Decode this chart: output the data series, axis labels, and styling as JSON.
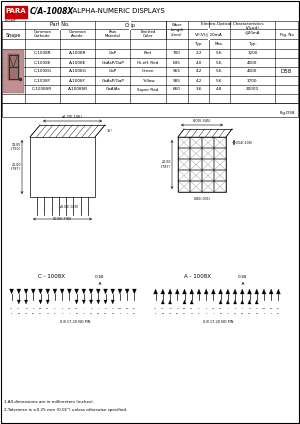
{
  "title_bold": "C/A-1008X",
  "title_rest": "  ALPHA-NUMERIC DISPLAYS",
  "company": "PARA",
  "company_sub": "LIGHT",
  "bg_color": "#ffffff",
  "table_data": [
    [
      "C-1008R",
      "A-1008R",
      "GaP",
      "Red",
      "700",
      "2.2",
      "5.6",
      "1200"
    ],
    [
      "C-1008E",
      "A-1008E",
      "GaAsP/GaP",
      "Hi-eff. Red",
      "635",
      "4.0",
      "5.6",
      "4000"
    ],
    [
      "C-1008G",
      "A-1008G",
      "GaP",
      "Green",
      "565",
      "4.2",
      "5.6",
      "4000"
    ],
    [
      "C-1008Y",
      "A-1008Y",
      "GaAsP/GaP",
      "Yellow",
      "585",
      "4.2",
      "5.6",
      "3700"
    ],
    [
      "C-1008SR",
      "A-1008SR",
      "GaAlAs",
      "Super Red",
      "660",
      "3.6",
      "4.8",
      "20000"
    ]
  ],
  "fig_no": "D58",
  "fig_no2": "Fig.D58",
  "note1": "1.All dimensions are in millimeters (inches).",
  "note2": "2.Tolerance is ±0.25 mm (0.01\") unless otherwise specified.",
  "shape_color": "#c0908880",
  "pin_labels_left": [
    "A1",
    "A2",
    "B",
    "C",
    "B1",
    "D2",
    "C",
    "F",
    "C1",
    "G2",
    "J",
    "K",
    "L",
    "N",
    "S",
    "P30",
    "P1GP2",
    "",
    "2 32 21 16 10 11 9  4  7 16 3 24 23 15 12 1 1  13"
  ],
  "pin_labels_right": [
    "A1",
    "A2",
    "B",
    "C",
    "B1",
    "D2",
    "C",
    "F",
    "G1",
    "G2",
    "J",
    "K",
    "L",
    "N",
    "S",
    "P30",
    "P1GP2",
    "",
    "2 32 21 16 10 11 9  4  7 16 3 24 23 15 12 1 1  13"
  ],
  "bottom_note_left": "0.B 17.20 NO PIN",
  "bottom_note_right": "0.B 17.20 NO PIN"
}
